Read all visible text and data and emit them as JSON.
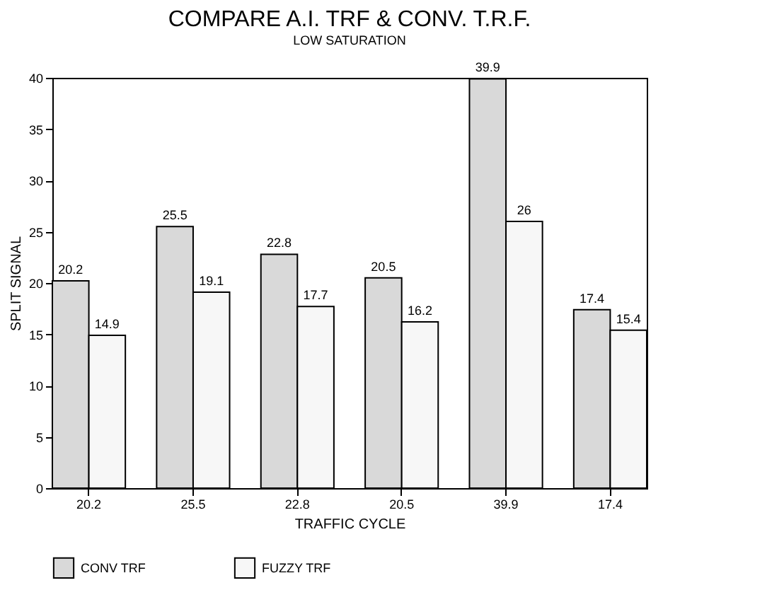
{
  "chart_data": {
    "type": "bar",
    "title": "COMPARE A.I. TRF & CONV. T.R.F.",
    "subtitle": "LOW SATURATION",
    "xlabel": "TRAFFIC CYCLE",
    "ylabel": "SPLIT SIGNAL",
    "categories": [
      "20.2",
      "25.5",
      "22.8",
      "20.5",
      "39.9",
      "17.4"
    ],
    "series": [
      {
        "name": "CONV TRF",
        "color": "#d9d9d9",
        "values": [
          20.2,
          25.5,
          22.8,
          20.5,
          39.9,
          17.4
        ]
      },
      {
        "name": "FUZZY TRF",
        "color": "#f7f7f7",
        "values": [
          14.9,
          19.1,
          17.7,
          16.2,
          26,
          15.4
        ]
      }
    ],
    "ylim": [
      0,
      40
    ],
    "yticks": [
      0,
      5,
      10,
      15,
      20,
      25,
      30,
      35,
      40
    ],
    "grid": false,
    "legend": "bottom",
    "data_labels": true
  }
}
